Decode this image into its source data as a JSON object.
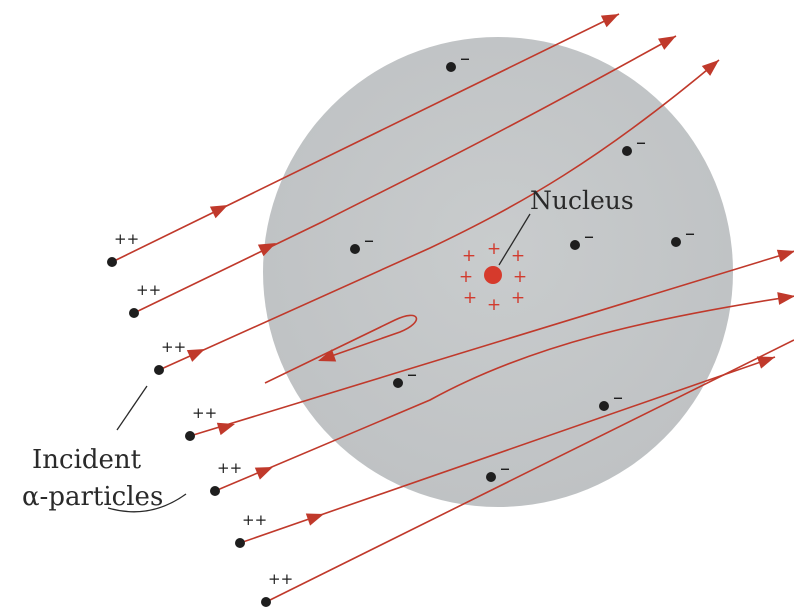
{
  "labels": {
    "nucleus": "Nucleus",
    "incident_line1": "Incident",
    "incident_line2": "α-particles"
  },
  "symbols": {
    "alpha_charge": "++",
    "electron_charge": "–",
    "nucleus_charge": "+"
  },
  "colors": {
    "atom": "#c3c6c8",
    "track": "#c0392b",
    "nucleus": "#d63a2c",
    "nucleus_plus": "#d23b2e",
    "particle": "#1e1e1e",
    "text": "#2a2a2a"
  }
}
